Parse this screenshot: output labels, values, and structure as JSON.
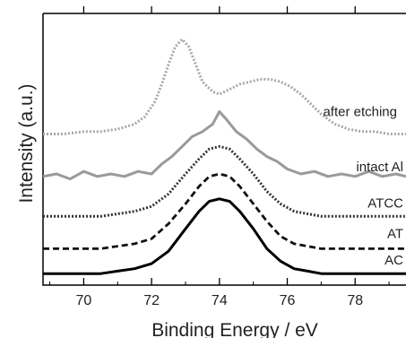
{
  "chart_data": {
    "type": "line",
    "xlabel": "Binding Energy / eV",
    "ylabel": "Intensity (a.u.)",
    "xlim": [
      68.8,
      79.5
    ],
    "x_ticks": [
      70,
      72,
      74,
      76,
      78
    ],
    "y_ticks_labeled": false,
    "grid": false,
    "legend": "inline labels at right",
    "series": [
      {
        "name": "after etching",
        "style": "dotted",
        "color": "#a8a8a8",
        "x": [
          68.8,
          69.4,
          70.0,
          70.5,
          71.0,
          71.5,
          71.8,
          72.1,
          72.3,
          72.5,
          72.7,
          72.9,
          73.1,
          73.3,
          73.5,
          73.8,
          74.0,
          74.3,
          74.6,
          74.9,
          75.2,
          75.5,
          75.8,
          76.1,
          76.4,
          76.7,
          77.0,
          77.4,
          77.8,
          78.2,
          78.6,
          79.0,
          79.5
        ],
        "y": [
          0.57,
          0.57,
          0.58,
          0.58,
          0.59,
          0.61,
          0.64,
          0.7,
          0.77,
          0.85,
          0.92,
          0.95,
          0.92,
          0.85,
          0.78,
          0.74,
          0.73,
          0.75,
          0.77,
          0.78,
          0.79,
          0.79,
          0.78,
          0.76,
          0.73,
          0.69,
          0.65,
          0.61,
          0.59,
          0.58,
          0.58,
          0.57,
          0.57
        ]
      },
      {
        "name": "intact Al",
        "style": "solid",
        "color": "#9a9a9a",
        "x": [
          68.8,
          69.2,
          69.6,
          70.0,
          70.4,
          70.8,
          71.2,
          71.6,
          72.0,
          72.3,
          72.6,
          72.9,
          73.2,
          73.5,
          73.8,
          74.0,
          74.2,
          74.5,
          74.8,
          75.1,
          75.4,
          75.7,
          76.0,
          76.4,
          76.8,
          77.2,
          77.6,
          78.0,
          78.4,
          78.8,
          79.2,
          79.5
        ],
        "y": [
          0.4,
          0.41,
          0.39,
          0.42,
          0.4,
          0.41,
          0.4,
          0.42,
          0.41,
          0.45,
          0.48,
          0.52,
          0.56,
          0.58,
          0.61,
          0.66,
          0.63,
          0.58,
          0.55,
          0.51,
          0.48,
          0.46,
          0.43,
          0.41,
          0.42,
          0.4,
          0.41,
          0.4,
          0.42,
          0.4,
          0.41,
          0.4
        ]
      },
      {
        "name": "ATCC",
        "style": "dotted",
        "color": "#333333",
        "x": [
          68.8,
          69.5,
          70.0,
          70.5,
          71.0,
          71.5,
          72.0,
          72.5,
          73.0,
          73.4,
          73.7,
          74.0,
          74.3,
          74.6,
          75.0,
          75.4,
          75.8,
          76.2,
          76.6,
          77.0,
          77.5,
          78.0,
          78.5,
          79.0,
          79.5
        ],
        "y": [
          0.24,
          0.24,
          0.24,
          0.24,
          0.25,
          0.26,
          0.28,
          0.33,
          0.41,
          0.47,
          0.51,
          0.52,
          0.51,
          0.47,
          0.41,
          0.34,
          0.29,
          0.26,
          0.25,
          0.24,
          0.24,
          0.24,
          0.24,
          0.24,
          0.24
        ]
      },
      {
        "name": "AT",
        "style": "dashed",
        "color": "#111111",
        "x": [
          68.8,
          69.5,
          70.0,
          70.5,
          71.0,
          71.5,
          72.0,
          72.5,
          73.0,
          73.4,
          73.7,
          74.0,
          74.3,
          74.6,
          75.0,
          75.4,
          75.8,
          76.2,
          76.6,
          77.0,
          77.5,
          78.0,
          78.5,
          79.0,
          79.5
        ],
        "y": [
          0.11,
          0.11,
          0.11,
          0.11,
          0.12,
          0.13,
          0.15,
          0.21,
          0.29,
          0.36,
          0.4,
          0.41,
          0.4,
          0.36,
          0.29,
          0.22,
          0.16,
          0.13,
          0.12,
          0.11,
          0.11,
          0.11,
          0.11,
          0.11,
          0.11
        ]
      },
      {
        "name": "AC",
        "style": "solid",
        "color": "#000000",
        "x": [
          68.8,
          69.5,
          70.0,
          70.5,
          71.0,
          71.5,
          72.0,
          72.5,
          73.0,
          73.4,
          73.7,
          74.0,
          74.3,
          74.6,
          75.0,
          75.4,
          75.8,
          76.2,
          76.6,
          77.0,
          77.5,
          78.0,
          78.5,
          79.0,
          79.5
        ],
        "y": [
          0.01,
          0.01,
          0.01,
          0.01,
          0.02,
          0.03,
          0.05,
          0.1,
          0.19,
          0.26,
          0.3,
          0.31,
          0.3,
          0.26,
          0.19,
          0.11,
          0.06,
          0.03,
          0.02,
          0.01,
          0.01,
          0.01,
          0.01,
          0.01,
          0.01
        ]
      }
    ]
  }
}
